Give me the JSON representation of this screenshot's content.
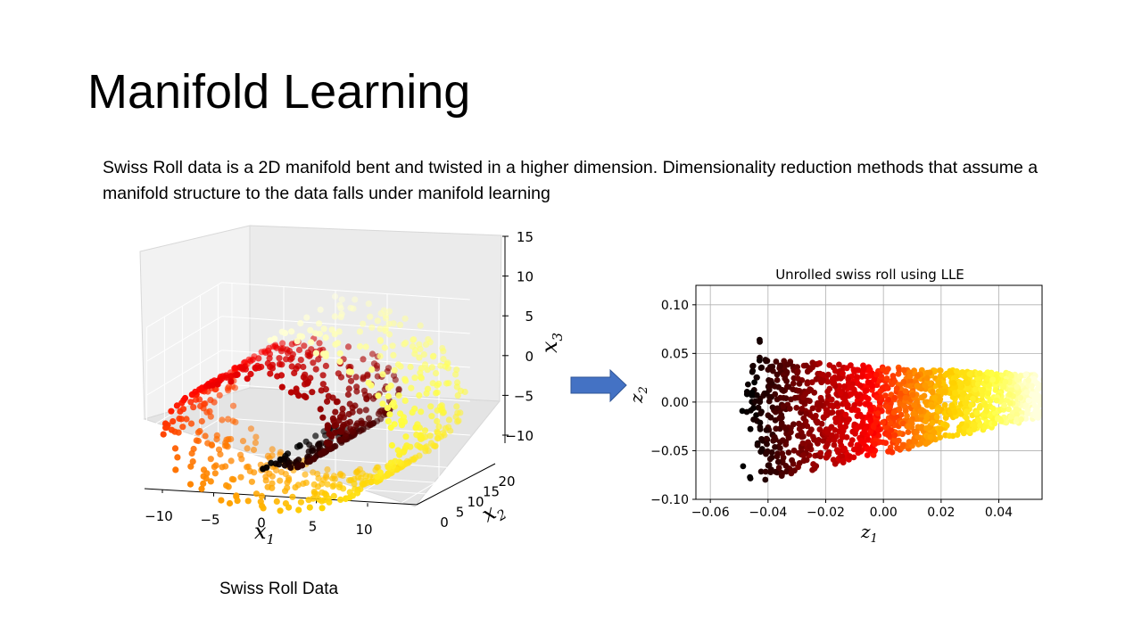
{
  "slide": {
    "title": "Manifold Learning",
    "description": "Swiss Roll data is a 2D manifold bent and twisted in a higher dimension. Dimensionality reduction methods that assume a manifold structure to the data falls under manifold learning",
    "caption": "Swiss Roll Data",
    "arrow_color": "#4472c4"
  },
  "chart_data": [
    {
      "type": "scatter",
      "subtype": "3d",
      "title": "",
      "xlabel": "x",
      "xlabel_sub": "1",
      "ylabel": "x",
      "ylabel_sub": "2",
      "zlabel": "x",
      "zlabel_sub": "3",
      "x_ticks": [
        "−10",
        "−5",
        "0",
        "5",
        "10"
      ],
      "y_ticks": [
        "0",
        "5",
        "10",
        "15",
        "20"
      ],
      "z_ticks": [
        "15",
        "10",
        "5",
        "0",
        "−5",
        "−10"
      ],
      "xlim": [
        -11,
        13
      ],
      "ylim": [
        0,
        21
      ],
      "zlim": [
        -12,
        15
      ],
      "colormap": "hot",
      "color_stops": [
        "#000000",
        "#5a0000",
        "#b30000",
        "#ff0000",
        "#ff7a00",
        "#ffd400",
        "#ffff40",
        "#ffffdc"
      ],
      "manifold": "swiss roll, t in [4.7, 14.1], x = t cos t, z = t sin t, height 0-21"
    },
    {
      "type": "scatter",
      "title": "Unrolled swiss roll using LLE",
      "xlabel": "z",
      "xlabel_sub": "1",
      "ylabel": "z",
      "ylabel_sub": "2",
      "x_ticks": [
        "−0.06",
        "−0.04",
        "−0.02",
        "0.00",
        "0.02",
        "0.04"
      ],
      "y_ticks": [
        "0.10",
        "0.05",
        "0.00",
        "−0.05",
        "−0.10"
      ],
      "xlim": [
        -0.065,
        0.055
      ],
      "ylim": [
        -0.1,
        0.12
      ],
      "grid": true,
      "colormap": "hot",
      "shape": "wedge with apex near z1=-0.045 spanning z2 -0.085 to 0.105, narrowing to z2 -0.015 to 0.03 at z1=0.055"
    }
  ]
}
